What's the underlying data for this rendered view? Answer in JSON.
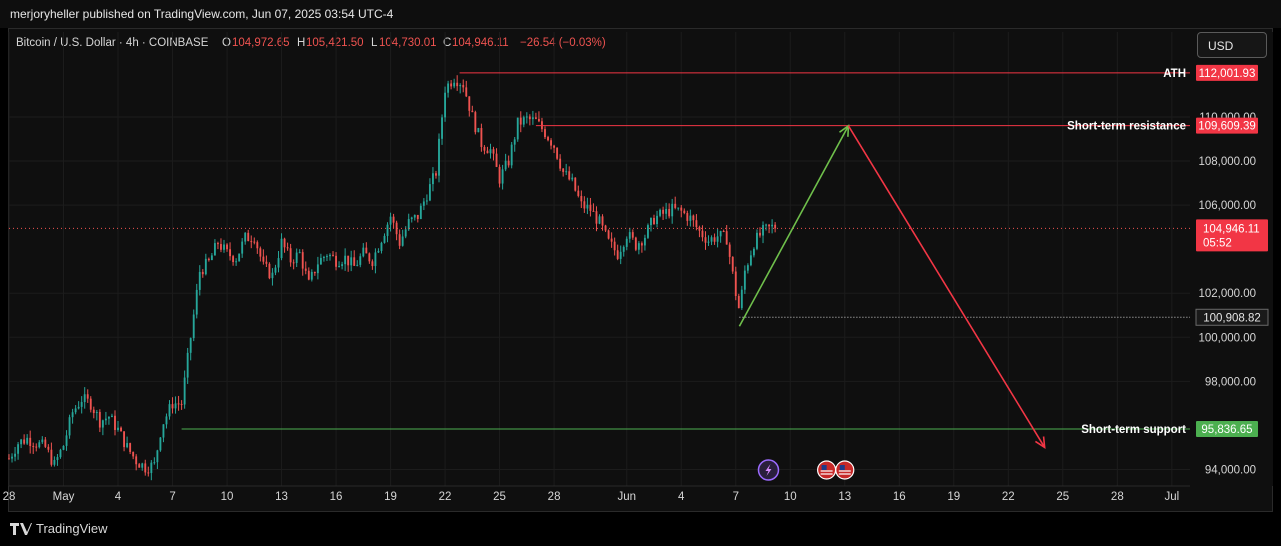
{
  "header": {
    "publisher_text": "merjoryheller published on TradingView.com, Jun 07, 2025 03:54 UTC-4"
  },
  "legend": {
    "symbol": "Bitcoin / U.S. Dollar · 4h · COINBASE",
    "o_label": "O",
    "o_value": "104,972.65",
    "h_label": "H",
    "h_value": "105,421.50",
    "l_label": "L",
    "l_value": "104,730.01",
    "c_label": "C",
    "c_value": "104,946.11",
    "change": "−26.54 (−0.03%)"
  },
  "currency_button": "USD",
  "footer": {
    "brand": "TradingView"
  },
  "colors": {
    "up": "#26a69a",
    "down": "#ef5350",
    "resistance": "#f23645",
    "support": "#4caf50",
    "arrow_up": "#6fbf4b",
    "arrow_down": "#f23645"
  },
  "chart_data": {
    "type": "candlestick",
    "ylim": [
      93250,
      112950
    ],
    "y_ticks": [
      {
        "value": 94000,
        "label": "94,000.00"
      },
      {
        "value": 98000,
        "label": "98,000.00"
      },
      {
        "value": 100000,
        "label": "100,000.00"
      },
      {
        "value": 102000,
        "label": "102,000.00"
      },
      {
        "value": 106000,
        "label": "106,000.00"
      },
      {
        "value": 108000,
        "label": "108,000.00"
      },
      {
        "value": 110000,
        "label": "110,000.00"
      }
    ],
    "x_ticks": [
      {
        "day": 0,
        "label": "28"
      },
      {
        "day": 3,
        "label": "May"
      },
      {
        "day": 6,
        "label": "4"
      },
      {
        "day": 9,
        "label": "7"
      },
      {
        "day": 12,
        "label": "10"
      },
      {
        "day": 15,
        "label": "13"
      },
      {
        "day": 18,
        "label": "16"
      },
      {
        "day": 21,
        "label": "19"
      },
      {
        "day": 24,
        "label": "22"
      },
      {
        "day": 27,
        "label": "25"
      },
      {
        "day": 30,
        "label": "28"
      },
      {
        "day": 34,
        "label": "Jun"
      },
      {
        "day": 37,
        "label": "4"
      },
      {
        "day": 40,
        "label": "7"
      },
      {
        "day": 43,
        "label": "10"
      },
      {
        "day": 46,
        "label": "13"
      },
      {
        "day": 49,
        "label": "16"
      },
      {
        "day": 52,
        "label": "19"
      },
      {
        "day": 55,
        "label": "22"
      },
      {
        "day": 58,
        "label": "25"
      },
      {
        "day": 61,
        "label": "28"
      },
      {
        "day": 64,
        "label": "Jul"
      }
    ],
    "close_path": [
      [
        0,
        94500
      ],
      [
        0.5,
        95200
      ],
      [
        1,
        95400
      ],
      [
        2,
        95000
      ],
      [
        2.5,
        94200
      ],
      [
        3,
        95100
      ],
      [
        3.5,
        96600
      ],
      [
        4,
        97200
      ],
      [
        4.5,
        97000
      ],
      [
        5,
        96200
      ],
      [
        5.5,
        96400
      ],
      [
        6,
        95800
      ],
      [
        6.5,
        95000
      ],
      [
        7,
        94400
      ],
      [
        7.5,
        94100
      ],
      [
        8,
        94200
      ],
      [
        8.4,
        96000
      ],
      [
        9,
        97000
      ],
      [
        9.5,
        97000
      ],
      [
        10,
        100000
      ],
      [
        10.5,
        103000
      ],
      [
        11,
        103400
      ],
      [
        11.5,
        104300
      ],
      [
        12,
        103800
      ],
      [
        12.5,
        103600
      ],
      [
        13,
        104500
      ],
      [
        13.5,
        104600
      ],
      [
        14,
        103200
      ],
      [
        14.5,
        102800
      ],
      [
        15,
        104300
      ],
      [
        15.5,
        103500
      ],
      [
        16,
        103800
      ],
      [
        16.5,
        102400
      ],
      [
        17,
        103400
      ],
      [
        17.5,
        103800
      ],
      [
        18,
        103500
      ],
      [
        18.5,
        103600
      ],
      [
        19,
        103200
      ],
      [
        19.5,
        103800
      ],
      [
        20,
        103500
      ],
      [
        20.5,
        104500
      ],
      [
        21,
        105500
      ],
      [
        21.5,
        104300
      ],
      [
        22,
        105200
      ],
      [
        22.5,
        105500
      ],
      [
        23,
        106500
      ],
      [
        23.5,
        107500
      ],
      [
        24,
        111300
      ],
      [
        24.5,
        111800
      ],
      [
        25,
        111500
      ],
      [
        25.5,
        110000
      ],
      [
        26,
        108800
      ],
      [
        26.5,
        108500
      ],
      [
        27,
        107200
      ],
      [
        27.5,
        108000
      ],
      [
        28,
        109700
      ],
      [
        28.5,
        109900
      ],
      [
        29,
        109800
      ],
      [
        29.5,
        109300
      ],
      [
        30,
        108700
      ],
      [
        30.5,
        107500
      ],
      [
        31,
        107000
      ],
      [
        31.5,
        106000
      ],
      [
        32,
        105800
      ],
      [
        32.5,
        105200
      ],
      [
        33,
        104300
      ],
      [
        33.5,
        103800
      ],
      [
        34,
        104700
      ],
      [
        34.5,
        104200
      ],
      [
        35,
        104600
      ],
      [
        35.5,
        105400
      ],
      [
        36,
        105600
      ],
      [
        36.5,
        105800
      ],
      [
        37,
        105700
      ],
      [
        37.5,
        105400
      ],
      [
        38,
        104800
      ],
      [
        38.5,
        104400
      ],
      [
        39,
        104600
      ],
      [
        39.5,
        104500
      ],
      [
        40,
        102000
      ],
      [
        40.2,
        101200
      ],
      [
        40.5,
        103000
      ],
      [
        41,
        104300
      ],
      [
        41.5,
        104800
      ],
      [
        42,
        105000
      ],
      [
        42.2,
        104946
      ]
    ],
    "x_domain": [
      0,
      65
    ],
    "levels": [
      {
        "name": "ATH",
        "value": 112001.93,
        "price_label": "112,001.93",
        "label": "ATH",
        "color": "#f23645",
        "from_day": 24.8
      },
      {
        "name": "Short-term resistance",
        "value": 109609.39,
        "price_label": "109,609.39",
        "label": "Short-term resistance",
        "color": "#f23645",
        "from_day": 29
      },
      {
        "name": "Short-term support",
        "value": 95836.65,
        "price_label": "95,836.65",
        "label": "Short-term support",
        "color": "#4caf50",
        "from_day": 9.5
      }
    ],
    "current_price": {
      "value": 104946.11,
      "label": "104,946.11",
      "countdown": "05:52"
    },
    "marked_low": {
      "value": 100908.82,
      "label": "100,908.82",
      "from_day": 40.2
    },
    "projection": {
      "up": {
        "from": [
          40.2,
          100500
        ],
        "to": [
          46.2,
          109600
        ]
      },
      "down": {
        "from": [
          46.2,
          109600
        ],
        "to": [
          57,
          95000
        ]
      }
    },
    "events": [
      {
        "day": 41.8,
        "type": "lightning"
      },
      {
        "day": 45,
        "type": "us-flag"
      },
      {
        "day": 46,
        "type": "us-flag"
      }
    ]
  }
}
